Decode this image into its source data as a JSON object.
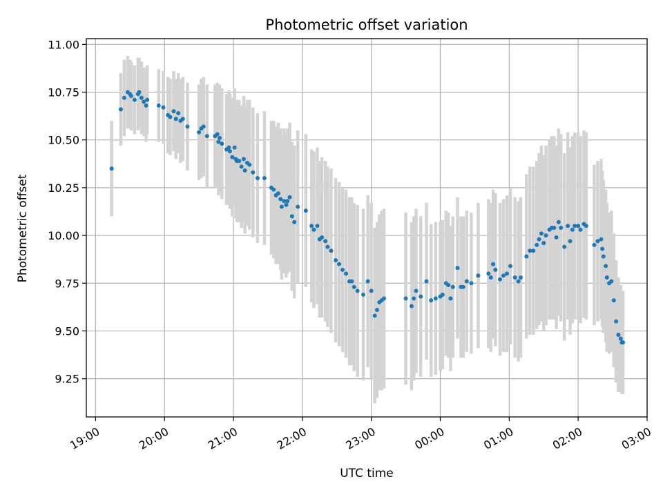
{
  "chart_data": {
    "type": "scatter",
    "title": "Photometric offset variation",
    "xlabel": "UTC time",
    "ylabel": "Photometric offset",
    "x_is_time": true,
    "xlim": [
      "18:52",
      "03:00"
    ],
    "ylim": [
      9.05,
      11.03
    ],
    "x_ticks": [
      "19:00",
      "20:00",
      "21:00",
      "22:00",
      "23:00",
      "00:00",
      "01:00",
      "02:00",
      "03:00"
    ],
    "y_ticks": [
      "9.25",
      "9.50",
      "9.75",
      "10.00",
      "10.25",
      "10.50",
      "10.75",
      "11.00"
    ],
    "grid": true,
    "colors": {
      "points": "#1f77b4",
      "errorbars": "#d3d3d3",
      "grid": "#b0b0b0",
      "axes": "#000000"
    },
    "series": [
      {
        "x": [
          "19:14",
          "19:22",
          "19:25",
          "19:28",
          "19:30",
          "19:31",
          "19:34",
          "19:37",
          "19:38",
          "19:40",
          "19:42",
          "19:44",
          "19:45",
          "19:55",
          "19:59",
          "20:03",
          "20:05",
          "20:08",
          "20:10",
          "20:12",
          "20:14",
          "20:16",
          "20:20",
          "20:30",
          "20:32",
          "20:34",
          "20:37",
          "20:44",
          "20:46",
          "20:47",
          "20:48",
          "20:50",
          "20:54",
          "20:56",
          "20:57",
          "20:59",
          "21:01",
          "21:02",
          "21:03",
          "21:05",
          "21:07",
          "21:09",
          "21:10",
          "21:12",
          "21:14",
          "21:17",
          "21:21",
          "21:27",
          "21:33",
          "21:35",
          "21:37",
          "21:39",
          "21:41",
          "21:42",
          "21:44",
          "21:46",
          "21:47",
          "21:49",
          "21:51",
          "21:53",
          "21:56",
          "22:03",
          "22:08",
          "22:10",
          "22:13",
          "22:15",
          "22:17",
          "22:20",
          "22:22",
          "22:25",
          "22:29",
          "22:32",
          "22:35",
          "22:38",
          "22:41",
          "22:43",
          "22:45",
          "22:48",
          "22:53",
          "22:57",
          "23:00",
          "23:03",
          "23:05",
          "23:07",
          "23:09",
          "23:11",
          "23:30",
          "23:35",
          "23:37",
          "23:39",
          "23:43",
          "23:48",
          "23:52",
          "23:56",
          "00:00",
          "00:02",
          "00:05",
          "00:07",
          "00:09",
          "00:11",
          "00:15",
          "00:18",
          "00:20",
          "00:23",
          "00:27",
          "00:33",
          "00:42",
          "00:44",
          "00:46",
          "00:48",
          "00:52",
          "00:55",
          "00:58",
          "01:01",
          "01:05",
          "01:08",
          "01:10",
          "01:15",
          "01:18",
          "01:21",
          "01:24",
          "01:26",
          "01:28",
          "01:30",
          "01:32",
          "01:35",
          "01:37",
          "01:39",
          "01:41",
          "01:43",
          "01:45",
          "01:48",
          "01:51",
          "01:53",
          "01:55",
          "01:57",
          "02:00",
          "02:02",
          "02:05",
          "02:07",
          "02:14",
          "02:17",
          "02:20",
          "02:21",
          "02:22",
          "02:24",
          "02:25",
          "02:27",
          "02:29",
          "02:31",
          "02:33",
          "02:35",
          "02:37",
          "02:38",
          "02:39"
        ],
        "y": [
          10.35,
          10.66,
          10.72,
          10.75,
          10.74,
          10.73,
          10.71,
          10.74,
          10.75,
          10.72,
          10.7,
          10.68,
          10.71,
          10.68,
          10.67,
          10.63,
          10.62,
          10.65,
          10.61,
          10.64,
          10.6,
          10.61,
          10.57,
          10.54,
          10.56,
          10.57,
          10.52,
          10.52,
          10.53,
          10.49,
          10.51,
          10.48,
          10.45,
          10.46,
          10.44,
          10.41,
          10.46,
          10.4,
          10.39,
          10.39,
          10.36,
          10.4,
          10.34,
          10.38,
          10.37,
          10.33,
          10.3,
          10.3,
          10.25,
          10.24,
          10.21,
          10.22,
          10.19,
          10.15,
          10.18,
          10.16,
          10.18,
          10.2,
          10.1,
          10.07,
          10.15,
          10.13,
          10.05,
          10.03,
          10.05,
          9.98,
          9.99,
          9.97,
          9.94,
          9.92,
          9.87,
          9.85,
          9.82,
          9.8,
          9.76,
          9.76,
          9.73,
          9.71,
          9.69,
          9.76,
          9.71,
          9.58,
          9.61,
          9.65,
          9.66,
          9.67,
          9.67,
          9.63,
          9.67,
          9.71,
          9.68,
          9.76,
          9.66,
          9.67,
          9.68,
          9.69,
          9.75,
          9.74,
          9.67,
          9.73,
          9.83,
          9.73,
          9.73,
          9.76,
          9.75,
          9.79,
          9.8,
          9.78,
          9.85,
          9.82,
          9.77,
          9.79,
          9.8,
          9.84,
          9.78,
          9.76,
          9.78,
          9.89,
          9.92,
          9.92,
          9.95,
          9.98,
          10.01,
          9.96,
          10.0,
          10.03,
          10.04,
          10.04,
          9.99,
          10.07,
          10.04,
          9.94,
          10.05,
          9.97,
          10.03,
          10.05,
          10.05,
          10.03,
          10.06,
          10.05,
          9.95,
          9.97,
          9.98,
          9.93,
          9.89,
          9.84,
          9.78,
          9.75,
          9.76,
          9.66,
          9.55,
          9.48,
          9.46,
          9.44,
          9.44
        ],
        "yerr": [
          0.25,
          0.19,
          0.2,
          0.19,
          0.18,
          0.18,
          0.18,
          0.19,
          0.18,
          0.19,
          0.18,
          0.19,
          0.18,
          0.19,
          0.19,
          0.2,
          0.2,
          0.21,
          0.21,
          0.21,
          0.22,
          0.22,
          0.23,
          0.25,
          0.26,
          0.26,
          0.27,
          0.27,
          0.27,
          0.28,
          0.28,
          0.29,
          0.29,
          0.3,
          0.3,
          0.31,
          0.31,
          0.31,
          0.32,
          0.32,
          0.32,
          0.33,
          0.33,
          0.33,
          0.34,
          0.34,
          0.34,
          0.35,
          0.35,
          0.36,
          0.36,
          0.37,
          0.37,
          0.38,
          0.38,
          0.38,
          0.38,
          0.39,
          0.39,
          0.4,
          0.4,
          0.4,
          0.4,
          0.41,
          0.41,
          0.41,
          0.42,
          0.42,
          0.42,
          0.43,
          0.43,
          0.43,
          0.43,
          0.44,
          0.44,
          0.44,
          0.44,
          0.45,
          0.45,
          0.45,
          0.46,
          0.46,
          0.46,
          0.46,
          0.47,
          0.47,
          0.45,
          0.44,
          0.43,
          0.43,
          0.42,
          0.41,
          0.4,
          0.4,
          0.39,
          0.39,
          0.38,
          0.38,
          0.38,
          0.37,
          0.37,
          0.37,
          0.37,
          0.37,
          0.37,
          0.38,
          0.39,
          0.39,
          0.39,
          0.4,
          0.4,
          0.4,
          0.41,
          0.41,
          0.42,
          0.42,
          0.42,
          0.43,
          0.44,
          0.44,
          0.44,
          0.45,
          0.46,
          0.46,
          0.47,
          0.47,
          0.48,
          0.48,
          0.48,
          0.49,
          0.49,
          0.49,
          0.49,
          0.49,
          0.49,
          0.49,
          0.49,
          0.49,
          0.49,
          0.49,
          0.42,
          0.42,
          0.42,
          0.41,
          0.4,
          0.4,
          0.39,
          0.37,
          0.37,
          0.35,
          0.32,
          0.3,
          0.28,
          0.27,
          0.27
        ]
      }
    ]
  }
}
